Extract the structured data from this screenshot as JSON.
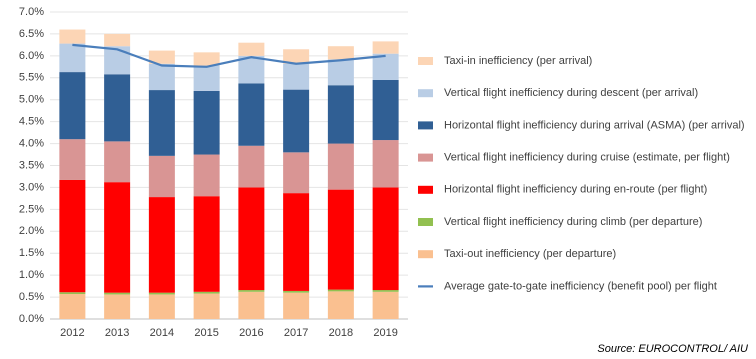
{
  "chart_data": {
    "type": "stacked-bar-line",
    "categories": [
      "2012",
      "2013",
      "2014",
      "2015",
      "2016",
      "2017",
      "2018",
      "2019"
    ],
    "series": [
      {
        "name": "Taxi-out inefficiency (per departure)",
        "color": "#fac090",
        "values": [
          0.57,
          0.56,
          0.56,
          0.58,
          0.62,
          0.6,
          0.63,
          0.62
        ]
      },
      {
        "name": "Vertical flight inefficiency during climb (per departure)",
        "color": "#92c050",
        "values": [
          0.04,
          0.04,
          0.04,
          0.04,
          0.04,
          0.04,
          0.04,
          0.04
        ]
      },
      {
        "name": "Horizontal flight inefficiency during en-route (per flight)",
        "color": "#ff0000",
        "values": [
          2.56,
          2.52,
          2.18,
          2.18,
          2.34,
          2.23,
          2.28,
          2.34
        ]
      },
      {
        "name": "Vertical flight inefficiency during cruise (estimate, per flight)",
        "color": "#d99594",
        "values": [
          0.93,
          0.93,
          0.94,
          0.95,
          0.95,
          0.93,
          1.05,
          1.08
        ]
      },
      {
        "name": "Horizontal flight inefficiency during arrival (ASMA) (per arrival)",
        "color": "#305f94",
        "values": [
          1.53,
          1.53,
          1.5,
          1.45,
          1.42,
          1.43,
          1.33,
          1.37
        ]
      },
      {
        "name": "Vertical flight inefficiency during descent (per arrival)",
        "color": "#b9cde5",
        "values": [
          0.65,
          0.64,
          0.6,
          0.58,
          0.63,
          0.59,
          0.59,
          0.6
        ]
      },
      {
        "name": "Taxi-in inefficiency (per arrival)",
        "color": "#fcd5b5",
        "values": [
          0.32,
          0.28,
          0.3,
          0.3,
          0.3,
          0.33,
          0.3,
          0.28
        ]
      },
      {
        "name": "Average gate-to-gate inefficiency (benefit pool) per flight",
        "color": "#4a7ebb",
        "type": "line",
        "values": [
          6.25,
          6.15,
          5.78,
          5.75,
          5.97,
          5.82,
          5.9,
          6.0
        ]
      }
    ],
    "ylim": [
      0,
      7
    ],
    "yticks": [
      {
        "value": 0,
        "label": "0.0%"
      },
      {
        "value": 0.5,
        "label": "0.5%"
      },
      {
        "value": 1,
        "label": "1.0%"
      },
      {
        "value": 1.5,
        "label": "1.5%"
      },
      {
        "value": 2,
        "label": "2.0%"
      },
      {
        "value": 2.5,
        "label": "2.5%"
      },
      {
        "value": 3,
        "label": "3.0%"
      },
      {
        "value": 3.5,
        "label": "3.5%"
      },
      {
        "value": 4,
        "label": "4.0%"
      },
      {
        "value": 4.5,
        "label": "4.5%"
      },
      {
        "value": 5,
        "label": "5.0%"
      },
      {
        "value": 5.5,
        "label": "5.5%"
      },
      {
        "value": 6,
        "label": "6.0%"
      },
      {
        "value": 6.5,
        "label": "6.5%"
      },
      {
        "value": 7,
        "label": "7.0%"
      }
    ],
    "grid": true,
    "legend": "right",
    "source": "Source: EUROCONTROL/ AIU"
  }
}
